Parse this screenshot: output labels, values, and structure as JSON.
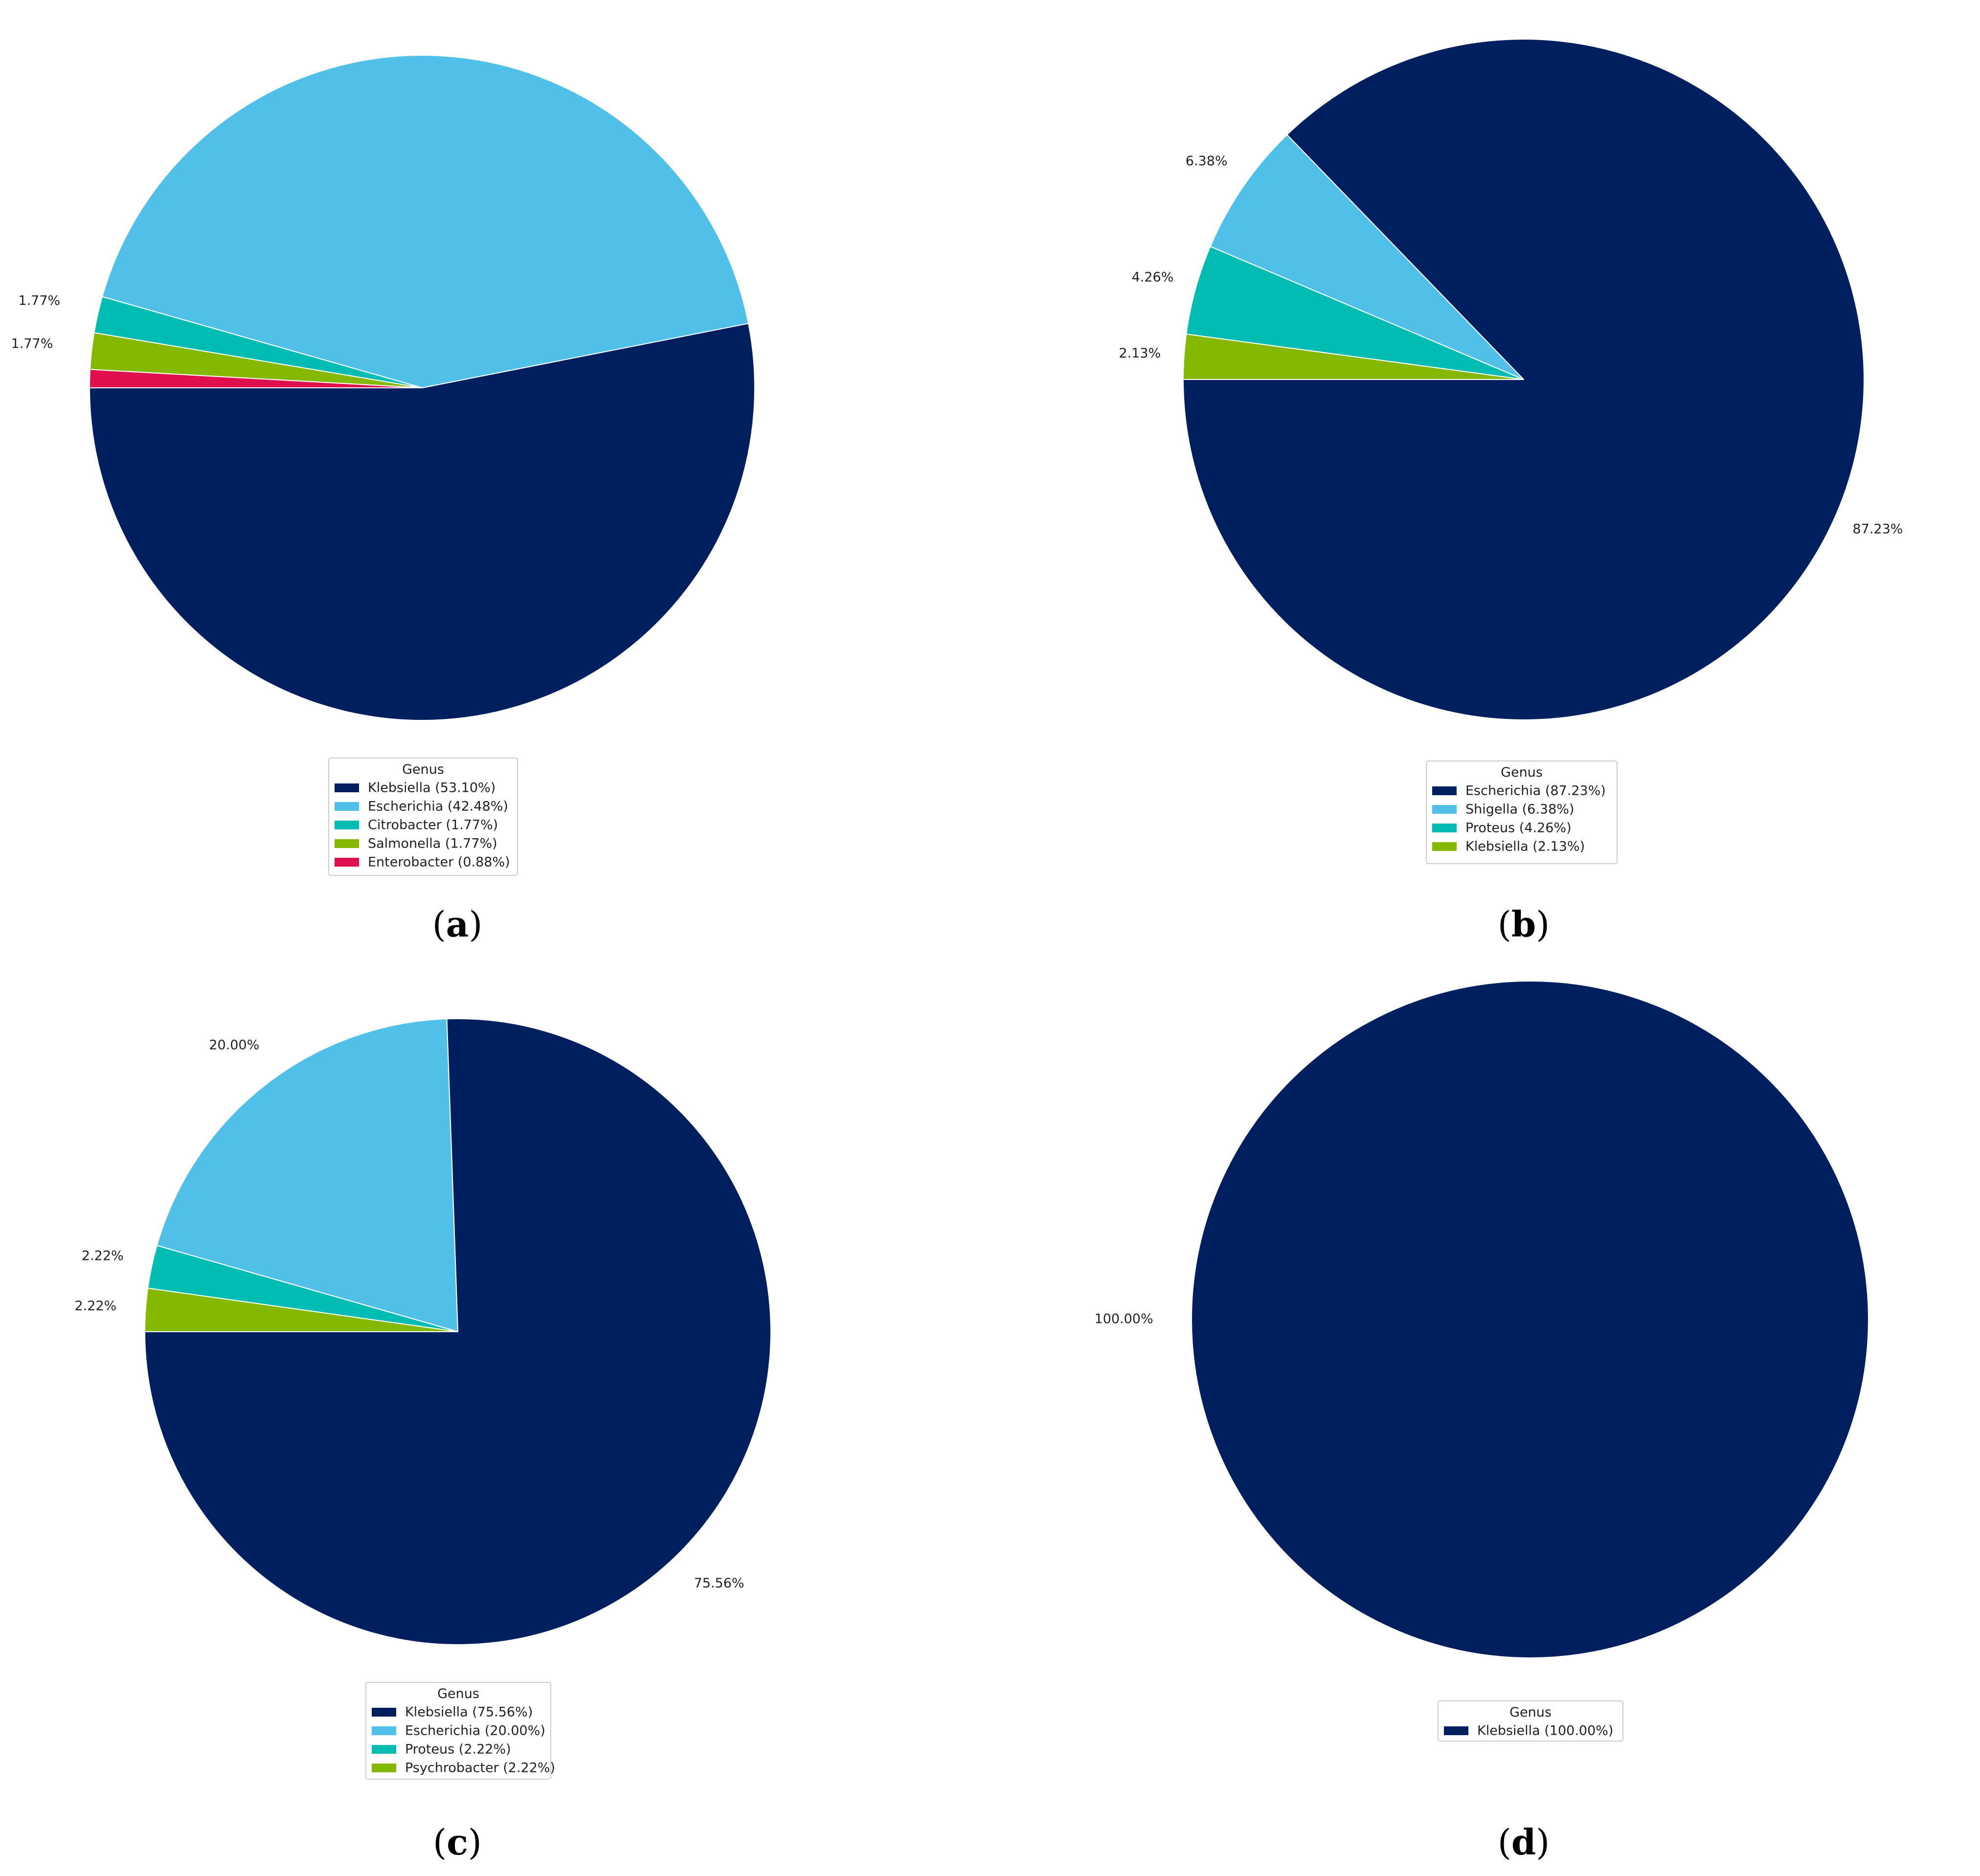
{
  "colors": {
    "navy": "#001f5f",
    "sky": "#51c0e8",
    "teal": "#00bcb2",
    "green": "#85b800",
    "crimson": "#e0104f",
    "edge": "#ffffff"
  },
  "chart_data": [
    {
      "type": "pie",
      "panel_label": "a",
      "legend_title": "Genus",
      "slices": [
        {
          "label": "Klebsiella",
          "value": 53.1,
          "pct_text": "53.10%",
          "legend_text": "Klebsiella (53.10%)",
          "color": "#001f5f"
        },
        {
          "label": "Escherichia",
          "value": 42.48,
          "pct_text": "42.48%",
          "legend_text": "Escherichia (42.48%)",
          "color": "#51c0e8"
        },
        {
          "label": "Citrobacter",
          "value": 1.77,
          "pct_text": "1.77%",
          "legend_text": "Citrobacter (1.77%)",
          "color": "#00bcb2"
        },
        {
          "label": "Salmonella",
          "value": 1.77,
          "pct_text": "1.77%",
          "legend_text": "Salmonella (1.77%)",
          "color": "#85b800"
        },
        {
          "label": "Enterobacter",
          "value": 0.88,
          "pct_text": "",
          "legend_text": "Enterobacter (0.88%)",
          "color": "#e0104f"
        }
      ]
    },
    {
      "type": "pie",
      "panel_label": "b",
      "legend_title": "Genus",
      "slices": [
        {
          "label": "Escherichia",
          "value": 87.23,
          "pct_text": "87.23%",
          "legend_text": "Escherichia (87.23%)",
          "color": "#001f5f"
        },
        {
          "label": "Shigella",
          "value": 6.38,
          "pct_text": "6.38%",
          "legend_text": "Shigella (6.38%)",
          "color": "#51c0e8"
        },
        {
          "label": "Proteus",
          "value": 4.26,
          "pct_text": "4.26%",
          "legend_text": "Proteus (4.26%)",
          "color": "#00bcb2"
        },
        {
          "label": "Klebsiella",
          "value": 2.13,
          "pct_text": "2.13%",
          "legend_text": "Klebsiella (2.13%)",
          "color": "#85b800"
        }
      ]
    },
    {
      "type": "pie",
      "panel_label": "c",
      "legend_title": "Genus",
      "slices": [
        {
          "label": "Klebsiella",
          "value": 75.56,
          "pct_text": "75.56%",
          "legend_text": "Klebsiella (75.56%)",
          "color": "#001f5f"
        },
        {
          "label": "Escherichia",
          "value": 20.0,
          "pct_text": "20.00%",
          "legend_text": "Escherichia (20.00%)",
          "color": "#51c0e8"
        },
        {
          "label": "Proteus",
          "value": 2.22,
          "pct_text": "2.22%",
          "legend_text": "Proteus (2.22%)",
          "color": "#00bcb2"
        },
        {
          "label": "Psychrobacter",
          "value": 2.22,
          "pct_text": "2.22%",
          "legend_text": "Psychrobacter (2.22%)",
          "color": "#85b800"
        }
      ]
    },
    {
      "type": "pie",
      "panel_label": "d",
      "legend_title": "Genus",
      "slices": [
        {
          "label": "Klebsiella",
          "value": 100.0,
          "pct_text": "100.00%",
          "legend_text": "Klebsiella (100.00%)",
          "color": "#001f5f"
        }
      ]
    }
  ]
}
